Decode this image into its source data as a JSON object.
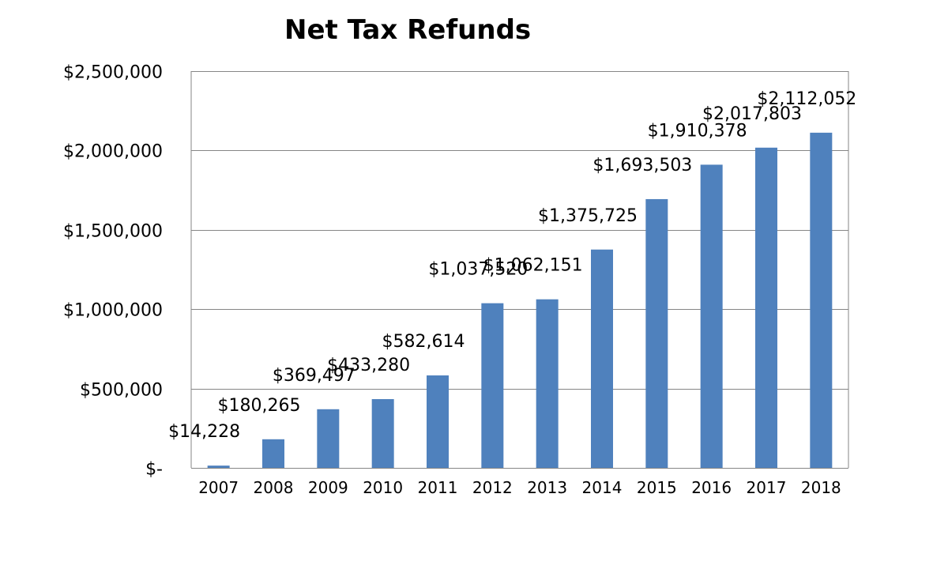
{
  "chart_data": {
    "type": "bar",
    "title": "Net Tax Refunds",
    "categories": [
      "2007",
      "2008",
      "2009",
      "2010",
      "2011",
      "2012",
      "2013",
      "2014",
      "2015",
      "2016",
      "2017",
      "2018"
    ],
    "values": [
      14228,
      180265,
      369497,
      433280,
      582614,
      1037520,
      1062151,
      1375725,
      1693503,
      1910378,
      2017803,
      2112052
    ],
    "data_labels": [
      "$14,228",
      "$180,265",
      "$369,497",
      "$433,280",
      "$582,614",
      "$1,037,520",
      "$1,062,151",
      "$1,375,725",
      "$1,693,503",
      "$1,910,378",
      "$2,017,803",
      "$2,112,052"
    ],
    "y_ticks": [
      0,
      500000,
      1000000,
      1500000,
      2000000,
      2500000
    ],
    "y_tick_labels": [
      "$-",
      "$500,000",
      "$1,000,000",
      "$1,500,000",
      "$2,000,000",
      "$2,500,000"
    ],
    "ylim": [
      0,
      2500000
    ],
    "grid": true,
    "legend": "none",
    "bar_color": "#4F81BD",
    "grid_color": "#868686"
  }
}
